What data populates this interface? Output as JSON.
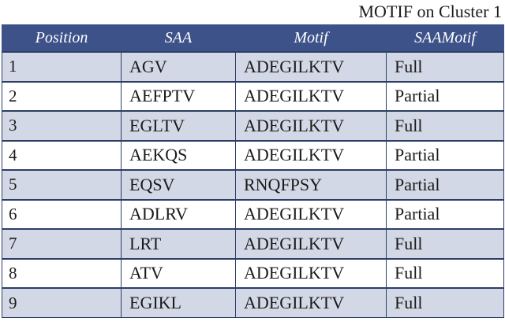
{
  "caption": "MOTIF on Cluster 1",
  "table": {
    "headers": [
      "Position",
      "SAA",
      "Motif",
      "SAAMotif"
    ],
    "rows": [
      [
        "1",
        "AGV",
        "ADEGILKTV",
        "Full"
      ],
      [
        "2",
        "AEFPTV",
        "ADEGILKTV",
        "Partial"
      ],
      [
        "3",
        "EGLTV",
        "ADEGILKTV",
        "Full"
      ],
      [
        "4",
        "AEKQS",
        "ADEGILKTV",
        "Partial"
      ],
      [
        "5",
        "EQSV",
        "RNQFPSY",
        "Partial"
      ],
      [
        "6",
        "ADLRV",
        "ADEGILKTV",
        "Partial"
      ],
      [
        "7",
        "LRT",
        "ADEGILKTV",
        "Full"
      ],
      [
        "8",
        "ATV",
        "ADEGILKTV",
        "Full"
      ],
      [
        "9",
        "EGIKL",
        "ADEGILKTV",
        "Full"
      ]
    ]
  },
  "colors": {
    "header_bg": "#3d5289",
    "header_text": "#ffffff",
    "odd_row_bg": "#d2d8e5",
    "even_row_bg": "#ffffff",
    "grid_line": "#2d3e66"
  }
}
